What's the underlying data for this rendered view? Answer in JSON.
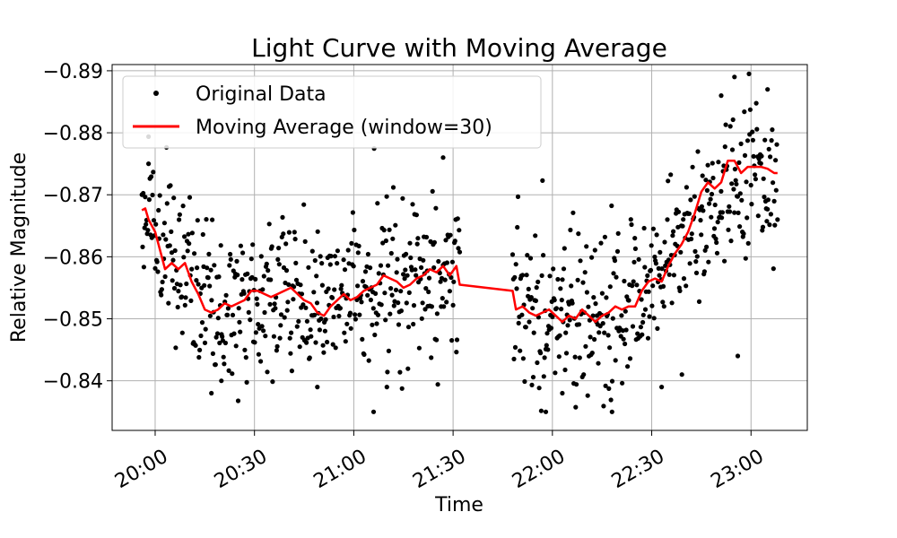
{
  "chart_data": {
    "type": "scatter",
    "title": "Light Curve with Moving Average",
    "xlabel": "Time",
    "ylabel": "Relative Magnitude",
    "x_axis_type": "time",
    "xlim": [
      "19:47",
      "23:17"
    ],
    "ylim": [
      -0.832,
      -0.891
    ],
    "y_inverted": true,
    "grid": true,
    "legend_position": "top-left",
    "x_ticks": [
      "20:00",
      "20:30",
      "21:00",
      "21:30",
      "22:00",
      "22:30",
      "23:00"
    ],
    "y_ticks": [
      -0.84,
      -0.85,
      -0.86,
      -0.87,
      -0.88,
      -0.89
    ],
    "y_tick_labels": [
      "−0.84",
      "−0.85",
      "−0.86",
      "−0.87",
      "−0.88",
      "−0.89"
    ],
    "series": [
      {
        "name": "Original Data",
        "kind": "scatter",
        "color": "#000000",
        "segments": [
          {
            "start": "19:56",
            "end": "21:32",
            "count": 480
          },
          {
            "start": "21:48",
            "end": "23:08",
            "count": 400
          }
        ],
        "trend": [
          {
            "x": "19:56",
            "y": -0.868
          },
          {
            "x": "20:00",
            "y": -0.864
          },
          {
            "x": "20:05",
            "y": -0.859
          },
          {
            "x": "20:10",
            "y": -0.857
          },
          {
            "x": "20:15",
            "y": -0.853
          },
          {
            "x": "20:20",
            "y": -0.852
          },
          {
            "x": "20:30",
            "y": -0.854
          },
          {
            "x": "20:40",
            "y": -0.854
          },
          {
            "x": "20:50",
            "y": -0.853
          },
          {
            "x": "21:00",
            "y": -0.853
          },
          {
            "x": "21:10",
            "y": -0.856
          },
          {
            "x": "21:20",
            "y": -0.857
          },
          {
            "x": "21:32",
            "y": -0.858
          },
          {
            "x": "21:48",
            "y": -0.851
          },
          {
            "x": "22:00",
            "y": -0.85
          },
          {
            "x": "22:10",
            "y": -0.85
          },
          {
            "x": "22:20",
            "y": -0.852
          },
          {
            "x": "22:30",
            "y": -0.855
          },
          {
            "x": "22:40",
            "y": -0.863
          },
          {
            "x": "22:50",
            "y": -0.871
          },
          {
            "x": "23:00",
            "y": -0.874
          },
          {
            "x": "23:08",
            "y": -0.874
          }
        ],
        "scatter_std": 0.0065,
        "outliers": [
          {
            "x": "19:58",
            "y": -0.875
          },
          {
            "x": "20:17",
            "y": -0.838
          },
          {
            "x": "20:20",
            "y": -0.84
          },
          {
            "x": "20:49",
            "y": -0.839
          },
          {
            "x": "21:06",
            "y": -0.835
          },
          {
            "x": "21:10",
            "y": -0.839
          },
          {
            "x": "21:27",
            "y": -0.876
          },
          {
            "x": "21:58",
            "y": -0.835
          },
          {
            "x": "22:03",
            "y": -0.838
          },
          {
            "x": "22:18",
            "y": -0.835
          },
          {
            "x": "22:51",
            "y": -0.886
          },
          {
            "x": "22:55",
            "y": -0.889
          },
          {
            "x": "23:05",
            "y": -0.887
          },
          {
            "x": "22:56",
            "y": -0.844
          },
          {
            "x": "22:33",
            "y": -0.839
          }
        ]
      },
      {
        "name": "Moving Average (window=30)",
        "kind": "line",
        "color": "#ff0000",
        "points": [
          {
            "x": "19:56",
            "y": -0.8675
          },
          {
            "x": "19:57",
            "y": -0.8678
          },
          {
            "x": "19:58",
            "y": -0.866
          },
          {
            "x": "20:00",
            "y": -0.864
          },
          {
            "x": "20:02",
            "y": -0.86
          },
          {
            "x": "20:03",
            "y": -0.858
          },
          {
            "x": "20:05",
            "y": -0.859
          },
          {
            "x": "20:07",
            "y": -0.858
          },
          {
            "x": "20:09",
            "y": -0.859
          },
          {
            "x": "20:11",
            "y": -0.856
          },
          {
            "x": "20:13",
            "y": -0.854
          },
          {
            "x": "20:15",
            "y": -0.8515
          },
          {
            "x": "20:17",
            "y": -0.851
          },
          {
            "x": "20:19",
            "y": -0.8515
          },
          {
            "x": "20:21",
            "y": -0.8525
          },
          {
            "x": "20:23",
            "y": -0.852
          },
          {
            "x": "20:25",
            "y": -0.8525
          },
          {
            "x": "20:27",
            "y": -0.853
          },
          {
            "x": "20:29",
            "y": -0.8545
          },
          {
            "x": "20:31",
            "y": -0.8545
          },
          {
            "x": "20:33",
            "y": -0.854
          },
          {
            "x": "20:35",
            "y": -0.8535
          },
          {
            "x": "20:37",
            "y": -0.854
          },
          {
            "x": "20:39",
            "y": -0.8545
          },
          {
            "x": "20:41",
            "y": -0.855
          },
          {
            "x": "20:43",
            "y": -0.854
          },
          {
            "x": "20:45",
            "y": -0.853
          },
          {
            "x": "20:47",
            "y": -0.8525
          },
          {
            "x": "20:49",
            "y": -0.851
          },
          {
            "x": "20:51",
            "y": -0.8505
          },
          {
            "x": "20:53",
            "y": -0.852
          },
          {
            "x": "20:55",
            "y": -0.853
          },
          {
            "x": "20:57",
            "y": -0.854
          },
          {
            "x": "20:59",
            "y": -0.853
          },
          {
            "x": "21:01",
            "y": -0.8535
          },
          {
            "x": "21:03",
            "y": -0.8545
          },
          {
            "x": "21:05",
            "y": -0.855
          },
          {
            "x": "21:07",
            "y": -0.8555
          },
          {
            "x": "21:09",
            "y": -0.857
          },
          {
            "x": "21:11",
            "y": -0.8565
          },
          {
            "x": "21:13",
            "y": -0.856
          },
          {
            "x": "21:15",
            "y": -0.855
          },
          {
            "x": "21:17",
            "y": -0.8555
          },
          {
            "x": "21:19",
            "y": -0.8565
          },
          {
            "x": "21:21",
            "y": -0.857
          },
          {
            "x": "21:23",
            "y": -0.858
          },
          {
            "x": "21:25",
            "y": -0.8575
          },
          {
            "x": "21:27",
            "y": -0.8585
          },
          {
            "x": "21:29",
            "y": -0.857
          },
          {
            "x": "21:31",
            "y": -0.8585
          },
          {
            "x": "21:32",
            "y": -0.8555
          },
          {
            "x": "21:48",
            "y": -0.8545
          },
          {
            "x": "21:49",
            "y": -0.8515
          },
          {
            "x": "21:51",
            "y": -0.852
          },
          {
            "x": "21:53",
            "y": -0.851
          },
          {
            "x": "21:55",
            "y": -0.8505
          },
          {
            "x": "21:57",
            "y": -0.851
          },
          {
            "x": "21:59",
            "y": -0.8515
          },
          {
            "x": "22:01",
            "y": -0.8505
          },
          {
            "x": "22:03",
            "y": -0.8495
          },
          {
            "x": "22:05",
            "y": -0.8505
          },
          {
            "x": "22:07",
            "y": -0.85
          },
          {
            "x": "22:09",
            "y": -0.8515
          },
          {
            "x": "22:11",
            "y": -0.8505
          },
          {
            "x": "22:13",
            "y": -0.8495
          },
          {
            "x": "22:15",
            "y": -0.8505
          },
          {
            "x": "22:17",
            "y": -0.851
          },
          {
            "x": "22:19",
            "y": -0.852
          },
          {
            "x": "22:21",
            "y": -0.8515
          },
          {
            "x": "22:23",
            "y": -0.852
          },
          {
            "x": "22:25",
            "y": -0.852
          },
          {
            "x": "22:27",
            "y": -0.8545
          },
          {
            "x": "22:29",
            "y": -0.856
          },
          {
            "x": "22:31",
            "y": -0.8565
          },
          {
            "x": "22:33",
            "y": -0.856
          },
          {
            "x": "22:35",
            "y": -0.8585
          },
          {
            "x": "22:37",
            "y": -0.8605
          },
          {
            "x": "22:39",
            "y": -0.862
          },
          {
            "x": "22:41",
            "y": -0.864
          },
          {
            "x": "22:43",
            "y": -0.867
          },
          {
            "x": "22:45",
            "y": -0.8705
          },
          {
            "x": "22:47",
            "y": -0.872
          },
          {
            "x": "22:49",
            "y": -0.871
          },
          {
            "x": "22:51",
            "y": -0.872
          },
          {
            "x": "22:53",
            "y": -0.8755
          },
          {
            "x": "22:55",
            "y": -0.8755
          },
          {
            "x": "22:57",
            "y": -0.8735
          },
          {
            "x": "22:59",
            "y": -0.8745
          },
          {
            "x": "23:01",
            "y": -0.8745
          },
          {
            "x": "23:03",
            "y": -0.8745
          },
          {
            "x": "23:05",
            "y": -0.8742
          },
          {
            "x": "23:07",
            "y": -0.8735
          },
          {
            "x": "23:08",
            "y": -0.8735
          }
        ]
      }
    ]
  }
}
